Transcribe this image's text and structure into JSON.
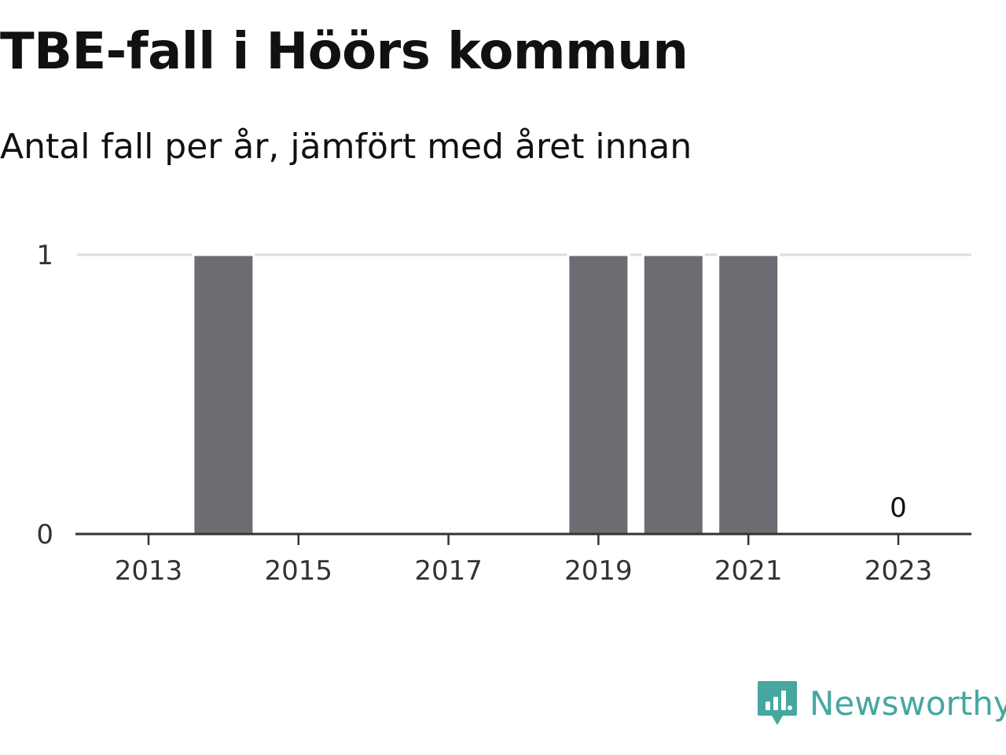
{
  "title": "TBE-fall i Höörs kommun",
  "subtitle": "Antal fall per år, jämfört med året innan",
  "brand": {
    "name": "Newsworthy",
    "color": "#45a7a0",
    "logo_icon": "bar-chart-speech-bubble-icon"
  },
  "colors": {
    "bar": "#6d6c73",
    "gridline": "#dddddd",
    "axis": "#333333",
    "title": "#111111"
  },
  "chart_data": {
    "type": "bar",
    "categories": [
      "2013",
      "2014",
      "2015",
      "2016",
      "2017",
      "2018",
      "2019",
      "2020",
      "2021",
      "2022",
      "2023"
    ],
    "values": [
      0,
      1,
      0,
      0,
      0,
      0,
      1,
      1,
      1,
      0,
      0
    ],
    "x_tick_labels": [
      "2013",
      "2015",
      "2017",
      "2019",
      "2021",
      "2023"
    ],
    "y_ticks": [
      0,
      1
    ],
    "ylim": [
      0,
      1
    ],
    "data_labels": [
      {
        "category": "2023",
        "text": "0"
      }
    ],
    "grid": true,
    "legend": "none"
  }
}
